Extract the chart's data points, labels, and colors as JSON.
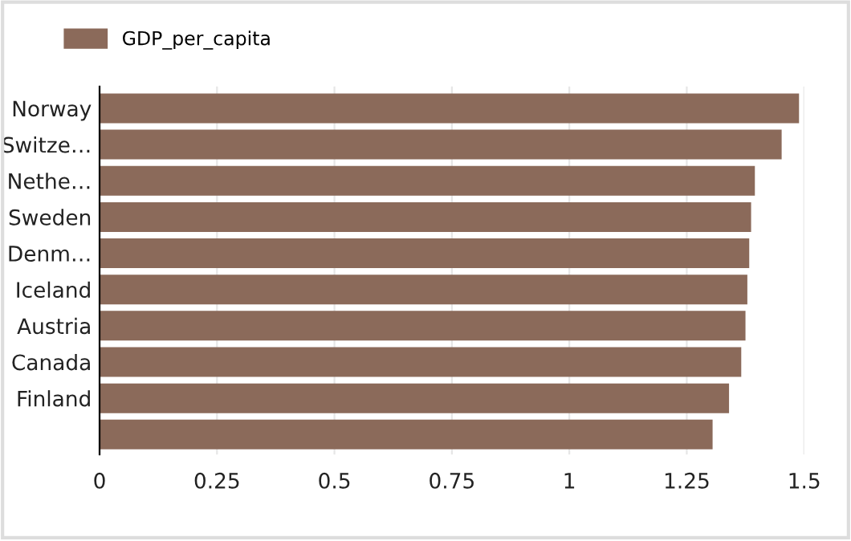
{
  "chart_data": {
    "type": "bar",
    "orientation": "horizontal",
    "categories": [
      "Norway",
      "Switze…",
      "Nethe…",
      "Sweden",
      "Denm…",
      "Iceland",
      "Austria",
      "Canada",
      "Finland",
      null
    ],
    "series": [
      {
        "name": "GDP_per_capita",
        "color": "#8b6a5a",
        "values": [
          1.489,
          1.452,
          1.395,
          1.387,
          1.383,
          1.379,
          1.375,
          1.366,
          1.34,
          1.305
        ]
      }
    ],
    "xlim": [
      0,
      1.5
    ],
    "xticks": [
      0,
      0.25,
      0.5,
      0.75,
      1,
      1.25,
      1.5
    ],
    "grid": "x",
    "legend": "top left"
  }
}
